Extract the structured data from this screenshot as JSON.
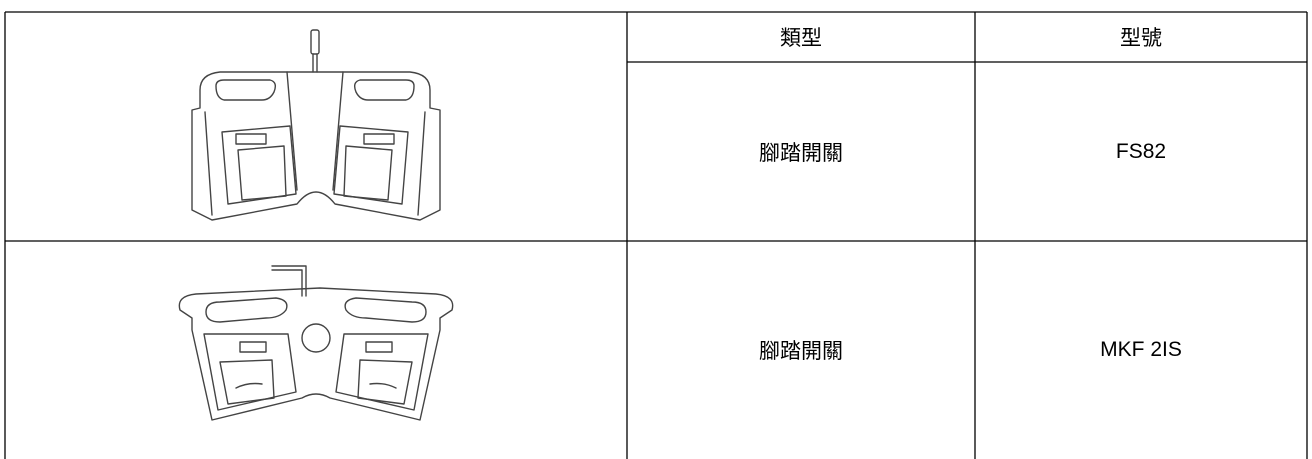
{
  "table": {
    "header": [
      "類型",
      "型號"
    ],
    "rows": [
      [
        "腳踏開關",
        "FS82"
      ],
      [
        "腳踏開關",
        "MKF 2IS"
      ]
    ]
  }
}
